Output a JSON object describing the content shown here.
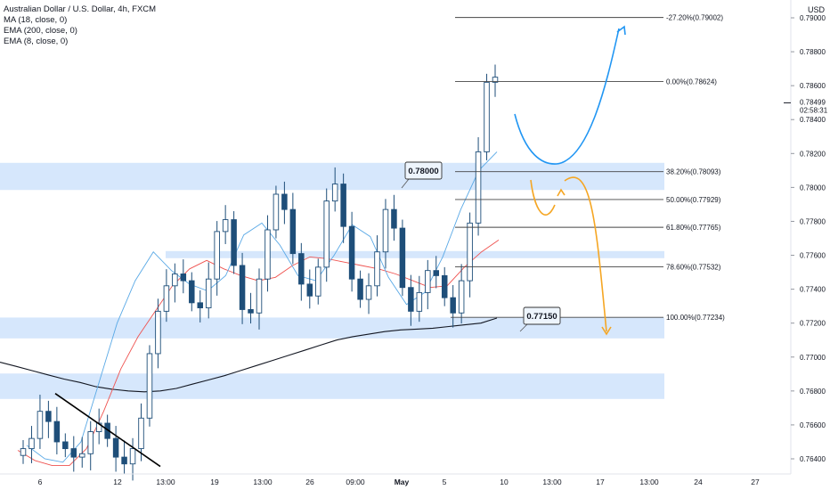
{
  "legend": {
    "title": "Australian Dollar / U.S. Dollar, 4h, FXCM",
    "ind1": "MA (18, close, 0)",
    "ind2": "EMA (200, close, 0)",
    "ind3": "EMA (8, close, 0)"
  },
  "currency": "USD",
  "colors": {
    "zone": "#cfe3fb",
    "blue_path": "#2196f3",
    "orange_path": "#f5a623",
    "ma18": "#ef5350",
    "ema200": "#131722",
    "ema8": "#5aa9e6",
    "candle": "#1e4e79",
    "price_label_bg": "#131722"
  },
  "chart_data": {
    "type": "candlestick",
    "symbol": "Australian Dollar / U.S. Dollar, 4h, FXCM",
    "price_axis": {
      "ticks": [
        "0.79000",
        "0.78800",
        "0.78600",
        "0.78400",
        "0.78200",
        "0.78000",
        "0.77800",
        "0.77600",
        "0.77400",
        "0.77200",
        "0.77000",
        "0.76800",
        "0.76600",
        "0.76400"
      ],
      "last_price": "0.78499",
      "countdown": "02:58:31",
      "range": [
        0.7633,
        0.7908
      ]
    },
    "time_axis": {
      "ticks": [
        "6",
        "12",
        "13:00",
        "19",
        "13:00",
        "26",
        "09:00",
        "May",
        "5",
        "10",
        "13:00",
        "17",
        "13:00",
        "24",
        "27"
      ]
    },
    "fibonacci": [
      {
        "label": "-27.20%(0.79002)",
        "price": 0.79002
      },
      {
        "label": "0.00%(0.78624)",
        "price": 0.78624
      },
      {
        "label": "38.20%(0.78093)",
        "price": 0.78093
      },
      {
        "label": "50.00%(0.77929)",
        "price": 0.77929
      },
      {
        "label": "61.80%(0.77765)",
        "price": 0.77765
      },
      {
        "label": "78.60%(0.77532)",
        "price": 0.77532
      },
      {
        "label": "100.00%(0.77234)",
        "price": 0.77234
      }
    ],
    "zones": [
      {
        "from": 0.77985,
        "to": 0.78145
      },
      {
        "from": 0.77583,
        "to": 0.77625
      },
      {
        "from": 0.7711,
        "to": 0.77233
      },
      {
        "from": 0.76753,
        "to": 0.76903
      }
    ],
    "callouts": [
      {
        "label": "0.78000",
        "price": 0.78
      },
      {
        "label": "0.77150",
        "price": 0.7715
      }
    ],
    "trendline": {
      "from": 0.76785,
      "to": 0.76355
    },
    "series": [
      {
        "name": "EMA (200, close, 0)",
        "values": [
          0.7697,
          0.76945,
          0.7692,
          0.76895,
          0.7687,
          0.7685,
          0.76825,
          0.7681,
          0.768,
          0.76795,
          0.768,
          0.76815,
          0.7684,
          0.76865,
          0.7689,
          0.7692,
          0.7695,
          0.7698,
          0.7701,
          0.7704,
          0.7707,
          0.771,
          0.7712,
          0.77135,
          0.7715,
          0.7716,
          0.77165,
          0.7717,
          0.7718,
          0.7719,
          0.772,
          0.7723
        ]
      },
      {
        "name": "MA (18, close, 0)",
        "values": [
          0.7645,
          0.7639,
          0.7636,
          0.7636,
          0.7646,
          0.7668,
          0.7693,
          0.7712,
          0.7727,
          0.7742,
          0.7752,
          0.7757,
          0.7752,
          0.7748,
          0.7745,
          0.7747,
          0.7754,
          0.7759,
          0.7758,
          0.7756,
          0.7754,
          0.7752,
          0.7749,
          0.7745,
          0.7741,
          0.7742,
          0.7753,
          0.7762,
          0.7769
        ]
      },
      {
        "name": "EMA (8, close, 0)",
        "values": [
          0.7648,
          0.764,
          0.7638,
          0.765,
          0.7685,
          0.772,
          0.7745,
          0.7762,
          0.7751,
          0.7743,
          0.7739,
          0.7748,
          0.7772,
          0.7779,
          0.7766,
          0.7748,
          0.7745,
          0.776,
          0.7778,
          0.7771,
          0.7747,
          0.7731,
          0.7738,
          0.7759,
          0.7787,
          0.781,
          0.7821
        ]
      }
    ],
    "candles_close": [
      0.7646,
      0.7652,
      0.7668,
      0.7662,
      0.765,
      0.7646,
      0.7641,
      0.7643,
      0.7656,
      0.7661,
      0.7652,
      0.7641,
      0.7637,
      0.7646,
      0.7664,
      0.7702,
      0.7727,
      0.7742,
      0.7749,
      0.7745,
      0.7732,
      0.7729,
      0.7746,
      0.7774,
      0.7781,
      0.7754,
      0.7728,
      0.7726,
      0.7746,
      0.7775,
      0.7796,
      0.7787,
      0.7761,
      0.7743,
      0.7736,
      0.7753,
      0.7792,
      0.7802,
      0.7777,
      0.7746,
      0.7734,
      0.7742,
      0.7762,
      0.7787,
      0.7776,
      0.7741,
      0.7727,
      0.7738,
      0.7751,
      0.7748,
      0.7735,
      0.7726,
      0.7745,
      0.7779,
      0.7821,
      0.7862,
      0.7865
    ]
  }
}
